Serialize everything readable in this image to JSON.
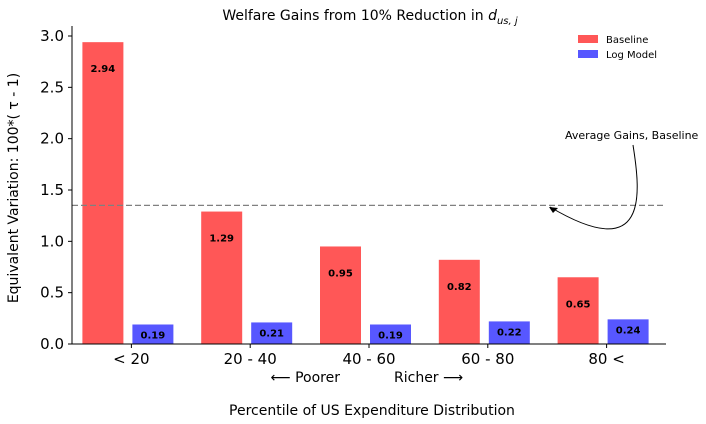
{
  "chart_data": {
    "type": "bar",
    "title_main": "Welfare Gains from 10% Reduction in ",
    "title_var": "d",
    "title_sub": "us, j",
    "ylabel": "Equivalent Variation: 100*( τ - 1)",
    "xlabel": "Percentile of US Expenditure Distribution",
    "x_arrow_left": "⟵ Poorer",
    "x_arrow_right": "Richer ⟶",
    "categories": [
      "< 20",
      "20 - 40",
      "40 - 60",
      "60 - 80",
      "80 <"
    ],
    "ylim": [
      0,
      3.0
    ],
    "yticks": [
      "0.0",
      "0.5",
      "1.0",
      "1.5",
      "2.0",
      "2.5",
      "3.0"
    ],
    "series": [
      {
        "name": "Baseline",
        "color": "#ff5757",
        "values": [
          2.94,
          1.29,
          0.95,
          0.82,
          0.65
        ],
        "labels": [
          "2.94",
          "1.29",
          "0.95",
          "0.82",
          "0.65"
        ]
      },
      {
        "name": "Log Model",
        "color": "#5757ff",
        "values": [
          0.19,
          0.21,
          0.19,
          0.22,
          0.24
        ],
        "labels": [
          "0.19",
          "0.21",
          "0.19",
          "0.22",
          "0.24"
        ]
      }
    ],
    "reference_line": {
      "value": 1.35,
      "style": "dashed",
      "color": "#808080"
    },
    "annotation": "Average Gains, Baseline",
    "legend_position": "top-right",
    "grid": false
  }
}
